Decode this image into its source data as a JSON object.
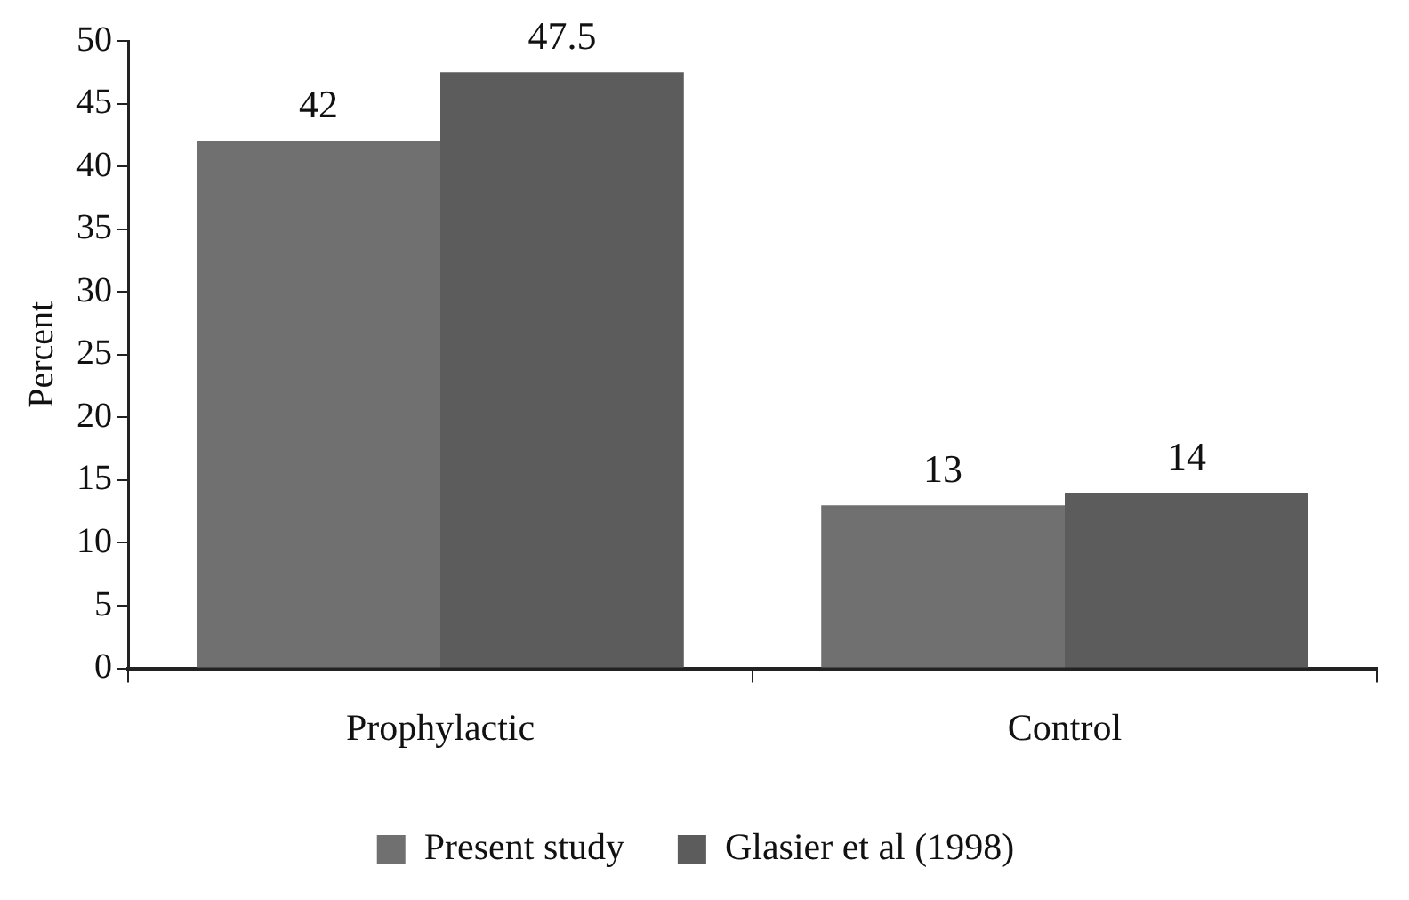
{
  "chart_data": {
    "type": "bar",
    "ylabel": "Percent",
    "categories": [
      "Prophylactic",
      "Control"
    ],
    "series": [
      {
        "name": "Present study",
        "color": "#707070",
        "values": [
          42,
          13
        ]
      },
      {
        "name": "Glasier et al (1998)",
        "color": "#5c5c5c",
        "values": [
          47.5,
          14
        ]
      }
    ],
    "ylim": [
      0,
      50
    ],
    "yticks": [
      0,
      5,
      10,
      15,
      20,
      25,
      30,
      35,
      40,
      45,
      50
    ],
    "grid": false,
    "legend": "bottom",
    "data_labels": true
  }
}
